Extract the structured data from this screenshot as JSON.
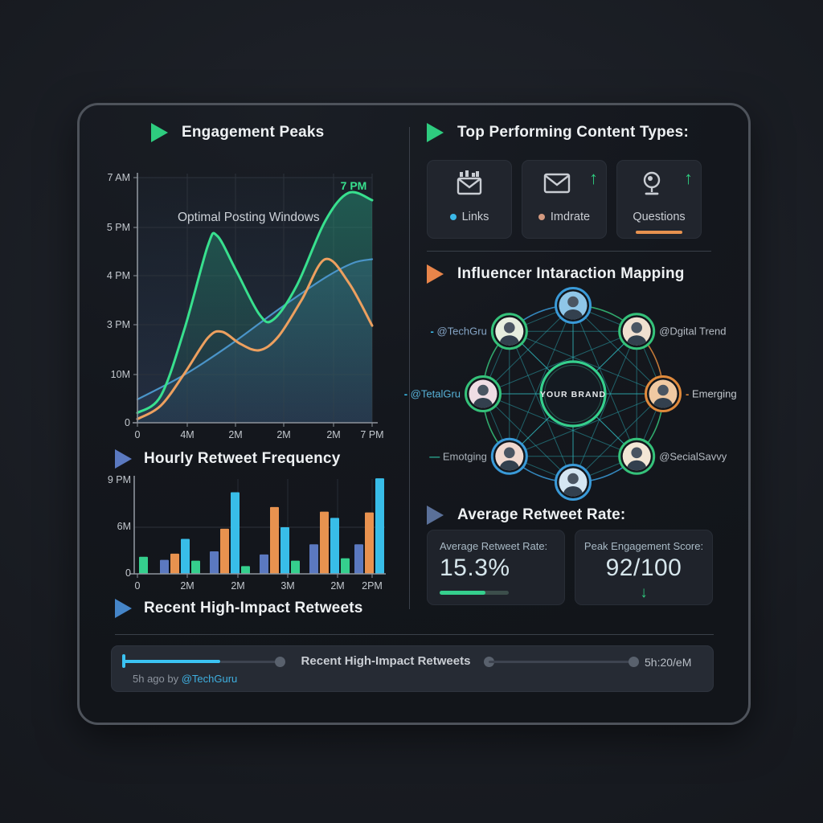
{
  "colors": {
    "accent_green": "#2ecc7f",
    "accent_cyan": "#3bc3f2",
    "accent_orange": "#e8924f",
    "accent_slate": "#5b79c0",
    "line_green": "#38e08e",
    "line_orange": "#eda05f",
    "line_blue": "#4a94c8",
    "panel_border": "#4e535b"
  },
  "sections": {
    "engagement": {
      "title": "Engagement Peaks"
    },
    "content_types": {
      "title": "Top Performing Content Types:"
    },
    "influencer": {
      "title": "Influencer Intaraction Mapping"
    },
    "hourly": {
      "title": "Hourly Retweet Frequency"
    },
    "recent": {
      "title": "Recent High-Impact Retweets"
    },
    "average": {
      "title": "Average Retweet Rate:"
    }
  },
  "chart_data": [
    {
      "type": "line",
      "title": "Engagement Peaks",
      "inner_label": "Optimal Posting Windows",
      "annotation": "7 PM",
      "x_ticks": [
        "0",
        "4M",
        "2M",
        "2M",
        "2M",
        "7 PM"
      ],
      "y_ticks": [
        "7 AM",
        "5 PM",
        "4 PM",
        "3 PM",
        "10M",
        "0"
      ],
      "grid": true,
      "legend": "none",
      "series": [
        {
          "name": "engagement-curve",
          "color": "#38e08e",
          "width": 3,
          "points": [
            [
              0,
              0.04
            ],
            [
              0.1,
              0.11
            ],
            [
              0.2,
              0.38
            ],
            [
              0.3,
              0.72
            ],
            [
              0.34,
              0.76
            ],
            [
              0.42,
              0.62
            ],
            [
              0.52,
              0.44
            ],
            [
              0.58,
              0.42
            ],
            [
              0.68,
              0.56
            ],
            [
              0.8,
              0.82
            ],
            [
              0.9,
              0.935
            ],
            [
              1,
              0.905
            ]
          ]
        },
        {
          "name": "secondary-curve",
          "color": "#eda05f",
          "width": 3,
          "points": [
            [
              0,
              0.015
            ],
            [
              0.1,
              0.07
            ],
            [
              0.2,
              0.2
            ],
            [
              0.3,
              0.345
            ],
            [
              0.36,
              0.37
            ],
            [
              0.44,
              0.32
            ],
            [
              0.52,
              0.295
            ],
            [
              0.6,
              0.35
            ],
            [
              0.7,
              0.5
            ],
            [
              0.8,
              0.665
            ],
            [
              0.9,
              0.57
            ],
            [
              1,
              0.395
            ]
          ]
        },
        {
          "name": "baseline-trend",
          "color": "#4a94c8",
          "width": 2.2,
          "points": [
            [
              0,
              0.095
            ],
            [
              0.2,
              0.195
            ],
            [
              0.4,
              0.32
            ],
            [
              0.6,
              0.46
            ],
            [
              0.8,
              0.59
            ],
            [
              0.92,
              0.65
            ],
            [
              1,
              0.665
            ]
          ]
        }
      ]
    },
    {
      "type": "bar",
      "title": "Hourly Retweet Frequency",
      "x_ticks": [
        "0",
        "2M",
        "2M",
        "3M",
        "2M",
        "2PM"
      ],
      "y_ticks": [
        "9 PM",
        "6M",
        "0"
      ],
      "ylim": [
        0,
        12.4
      ],
      "grid": true,
      "series_colors": [
        "#5b79c0",
        "#e8924f",
        "#38bde8",
        "#35cf8d"
      ],
      "groups": [
        [
          [
            3,
            2.2
          ]
        ],
        [
          [
            0,
            1.8
          ],
          [
            1,
            2.6
          ],
          [
            2,
            4.5
          ],
          [
            3,
            1.7
          ]
        ],
        [
          [
            0,
            2.9
          ],
          [
            1,
            5.8
          ],
          [
            2,
            10.5
          ],
          [
            3,
            1.0
          ]
        ],
        [
          [
            0,
            2.5
          ],
          [
            1,
            8.6
          ],
          [
            2,
            6.0
          ],
          [
            3,
            1.7
          ]
        ],
        [
          [
            0,
            3.8
          ],
          [
            1,
            8.0
          ],
          [
            2,
            7.2
          ],
          [
            3,
            2.0
          ]
        ],
        [
          [
            0,
            3.8
          ],
          [
            1,
            7.9
          ],
          [
            2,
            12.3
          ]
        ]
      ]
    }
  ],
  "content_types": {
    "cards": [
      {
        "label": "Links",
        "bullet_color": "#3bb8e8",
        "icon": "mail-chart-icon",
        "trend": ""
      },
      {
        "label": "Imdrate",
        "bullet_color": "#d49a80",
        "icon": "envelope-icon",
        "trend": "up"
      },
      {
        "label": "Questions",
        "bullet_color": "",
        "icon": "webcam-icon",
        "trend": "up",
        "underline": true
      }
    ],
    "up_arrow": "↑"
  },
  "influencer": {
    "center_label": "YOUR BRAND",
    "nodes": [
      {
        "name": "node-top",
        "ring": "#3a9ad8",
        "skin": "#8fc6e8",
        "label": "",
        "side": "",
        "dash": "",
        "dash_color": "",
        "label_color": ""
      },
      {
        "name": "node-dgital-trend",
        "ring": "#35c27a",
        "skin": "#f0e0d0",
        "label": "@Dgital Trend",
        "side": "right",
        "dash": "",
        "dash_color": "",
        "label_color": "#b6bcc4"
      },
      {
        "name": "node-emerging",
        "ring": "#e08a3c",
        "skin": "#f0c9a2",
        "label": "Emerging",
        "side": "right",
        "dash": "- ",
        "dash_color": "#e08a3c",
        "label_color": "#c4cad0"
      },
      {
        "name": "node-social-savvy",
        "ring": "#35c27a",
        "skin": "#f3e7d6",
        "label": "@SecialSavvy",
        "side": "right",
        "dash": "",
        "dash_color": "",
        "label_color": "#b6bcc4"
      },
      {
        "name": "node-bottom",
        "ring": "#3a9ad8",
        "skin": "#d5e6f2",
        "label": "",
        "side": "",
        "dash": "",
        "dash_color": "",
        "label_color": ""
      },
      {
        "name": "node-emotging",
        "ring": "#3a9ad8",
        "skin": "#f0d9d0",
        "label": "Emotging",
        "side": "left",
        "dash": "— ",
        "dash_color": "#2aa890",
        "label_color": "#aab2ba"
      },
      {
        "name": "node-tetalgru",
        "ring": "#35c27a",
        "skin": "#efdde4",
        "label": "@TetalGru",
        "side": "left",
        "dash": "- ",
        "dash_color": "#3bc3f2",
        "label_color": "#57b2d8"
      },
      {
        "name": "node-techgru",
        "ring": "#35c27a",
        "skin": "#e6eedf",
        "label": "@TechGru",
        "side": "left",
        "dash": "- ",
        "dash_color": "#3bc3f2",
        "label_color": "#85a5c6"
      }
    ]
  },
  "stats": {
    "cards": [
      {
        "label": "Average Retweet Rate:",
        "value": "15.3%",
        "progress": 0.66
      },
      {
        "label": "Peak Engagement Score:",
        "value": "92/100",
        "trend": "down"
      }
    ],
    "down_arrow": "↓"
  },
  "player": {
    "title": "Recent High-Impact Retweets",
    "time": "5h:20/eM",
    "byline_prefix": "5h ago by ",
    "byline_handle": "@TechGuru"
  }
}
